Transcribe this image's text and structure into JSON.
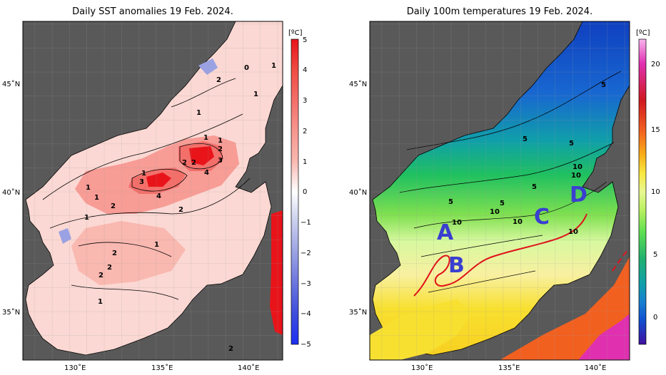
{
  "left_panel": {
    "title": "Daily SST anomalies 19 Feb. 2024.",
    "colorbar_unit": "[ºC]",
    "colorbar_ticks": [
      "5",
      "4",
      "3",
      "2",
      "1",
      "0",
      "−1",
      "−2",
      "−3",
      "−4",
      "−5"
    ],
    "colorbar_colors": [
      "#e8141a",
      "#ef4b43",
      "#f36f6a",
      "#f7968f",
      "#f9b8b0",
      "#fbd8d3",
      "#ffffff",
      "#c8cdec",
      "#9aa2e4",
      "#6b75de",
      "#3e4ddb",
      "#1b2ef2"
    ],
    "contour_labels": [
      "0",
      "1",
      "1",
      "2",
      "1",
      "1",
      "1",
      "2",
      "2",
      "2",
      "4",
      "3",
      "3",
      "1",
      "4",
      "2",
      "2",
      "1",
      "1",
      "1",
      "2",
      "1",
      "2",
      "2",
      "1",
      "2"
    ]
  },
  "right_panel": {
    "title": "Daily 100m temperatures 19 Feb. 2024.",
    "colorbar_unit": "[ºC]",
    "colorbar_ticks": [
      "20",
      "15",
      "10",
      "5",
      "0"
    ],
    "colorbar_colors": [
      "#f7b5ef",
      "#e030b0",
      "#d01820",
      "#f26020",
      "#f9b018",
      "#f8e840",
      "#e8f890",
      "#b8f060",
      "#60e050",
      "#20b070",
      "#10a0a8",
      "#1880d0",
      "#1050d0",
      "#3020b0",
      "#4010a0"
    ],
    "contour_labels": [
      "5",
      "5",
      "5",
      "5",
      "10",
      "10",
      "5",
      "10",
      "10",
      "10",
      "10",
      "5"
    ],
    "region_labels": [
      "A",
      "B",
      "C",
      "D"
    ]
  },
  "axes": {
    "lon_ticks": [
      "130˚E",
      "135˚E",
      "140˚E"
    ],
    "lat_ticks": [
      "45˚N",
      "40˚N",
      "35˚N"
    ]
  },
  "colors": {
    "land": "#595959",
    "coast_line": "#000000",
    "front_line": "#e0101a",
    "region_text": "#3a3fd0"
  }
}
